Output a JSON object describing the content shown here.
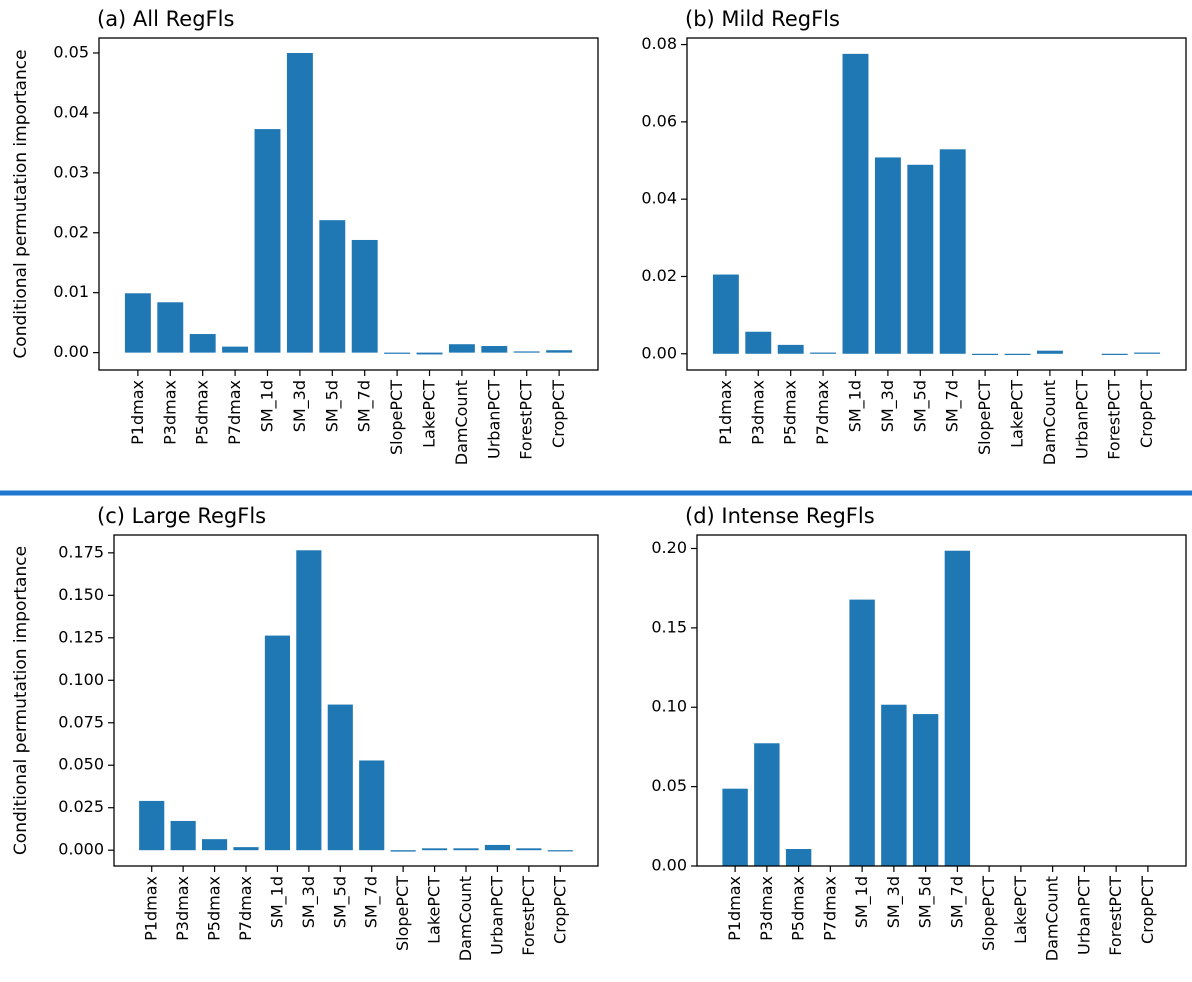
{
  "figure": {
    "divider_color": "#1f77d0",
    "bar_color": "#1f77b4"
  },
  "chart_data": [
    {
      "type": "bar",
      "title": "(a) All RegFls",
      "ylabel": "Conditional permutation importance",
      "categories": [
        "P1dmax",
        "P3dmax",
        "P5dmax",
        "P7dmax",
        "SM_1d",
        "SM_3d",
        "SM_5d",
        "SM_7d",
        "SlopePCT",
        "LakePCT",
        "DamCount",
        "UrbanPCT",
        "ForestPCT",
        "CropPCT"
      ],
      "values": [
        0.0099,
        0.0084,
        0.0031,
        0.001,
        0.0373,
        0.05,
        0.0221,
        0.0188,
        -0.0002,
        -0.0003,
        0.0014,
        0.0011,
        0.0002,
        0.0004
      ],
      "ylim": [
        -0.0029,
        0.0525
      ],
      "yticks": [
        0.0,
        0.01,
        0.02,
        0.03,
        0.04,
        0.05
      ],
      "ytick_labels": [
        "0.00",
        "0.01",
        "0.02",
        "0.03",
        "0.04",
        "0.05"
      ],
      "grid": false,
      "legend": "none"
    },
    {
      "type": "bar",
      "title": "(b) Mild RegFls",
      "ylabel": "",
      "categories": [
        "P1dmax",
        "P3dmax",
        "P5dmax",
        "P7dmax",
        "SM_1d",
        "SM_3d",
        "SM_5d",
        "SM_7d",
        "SlopePCT",
        "LakePCT",
        "DamCount",
        "UrbanPCT",
        "ForestPCT",
        "CropPCT"
      ],
      "values": [
        0.0205,
        0.0057,
        0.0023,
        0.0002,
        0.0776,
        0.0508,
        0.0489,
        0.0529,
        -0.0003,
        -0.0001,
        0.0008,
        0.0,
        -0.0003,
        0.0001
      ],
      "ylim": [
        -0.0042,
        0.0817
      ],
      "yticks": [
        0.0,
        0.02,
        0.04,
        0.06,
        0.08
      ],
      "ytick_labels": [
        "0.00",
        "0.02",
        "0.04",
        "0.06",
        "0.08"
      ],
      "grid": false,
      "legend": "none"
    },
    {
      "type": "bar",
      "title": "(c) Large RegFls",
      "ylabel": "Conditional permutation importance",
      "categories": [
        "P1dmax",
        "P3dmax",
        "P5dmax",
        "P7dmax",
        "SM_1d",
        "SM_3d",
        "SM_5d",
        "SM_7d",
        "SlopePCT",
        "LakePCT",
        "DamCount",
        "UrbanPCT",
        "ForestPCT",
        "CropPCT"
      ],
      "values": [
        0.029,
        0.0172,
        0.0065,
        0.0018,
        0.1263,
        0.1765,
        0.0857,
        0.0528,
        -0.0008,
        0.0011,
        0.0011,
        0.0031,
        0.0011,
        -0.0005
      ],
      "ylim": [
        -0.0093,
        0.1855
      ],
      "yticks": [
        0.0,
        0.025,
        0.05,
        0.075,
        0.1,
        0.125,
        0.15,
        0.175
      ],
      "ytick_labels": [
        "0.000",
        "0.025",
        "0.050",
        "0.075",
        "0.100",
        "0.125",
        "0.150",
        "0.175"
      ],
      "grid": false,
      "legend": "none"
    },
    {
      "type": "bar",
      "title": "(d) Intense RegFls",
      "ylabel": "",
      "categories": [
        "P1dmax",
        "P3dmax",
        "P5dmax",
        "P7dmax",
        "SM_1d",
        "SM_3d",
        "SM_5d",
        "SM_7d",
        "SlopePCT",
        "LakePCT",
        "DamCount",
        "UrbanPCT",
        "ForestPCT",
        "CropPCT"
      ],
      "values": [
        0.0487,
        0.0773,
        0.0107,
        0.0,
        0.1678,
        0.1016,
        0.0957,
        0.1986,
        0.0,
        0.0,
        0.0,
        0.0,
        0.0,
        0.0
      ],
      "ylim": [
        0.0,
        0.2085
      ],
      "yticks": [
        0.0,
        0.05,
        0.1,
        0.15,
        0.2
      ],
      "ytick_labels": [
        "0.00",
        "0.05",
        "0.10",
        "0.15",
        "0.20"
      ],
      "grid": false,
      "legend": "none"
    }
  ]
}
